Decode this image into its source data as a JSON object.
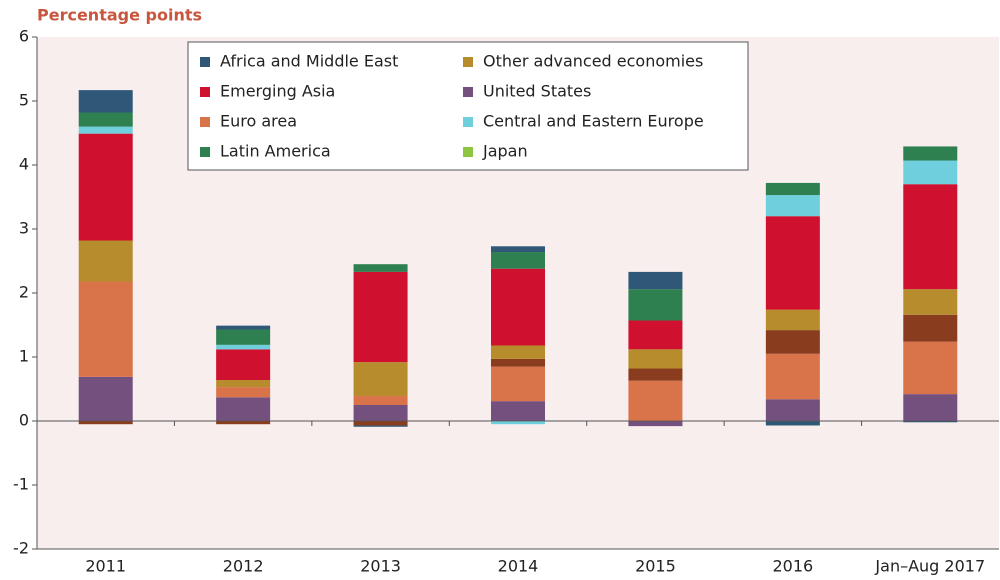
{
  "chart_data": {
    "type": "stacked_bar",
    "title": "Percentage points",
    "categories": [
      "2011",
      "2012",
      "2013",
      "2014",
      "2015",
      "2016",
      "Jan–Aug 2017"
    ],
    "series": [
      {
        "name": "Africa and Middle East",
        "color": "#2f5878",
        "values": [
          0.35,
          0.06,
          -0.02,
          0.09,
          0.27,
          -0.07,
          -0.02
        ]
      },
      {
        "name": "Emerging Asia",
        "color": "#d0102f",
        "values": [
          1.67,
          0.48,
          1.41,
          1.2,
          0.45,
          1.46,
          1.64
        ]
      },
      {
        "name": "Euro area",
        "color": "#d9744a",
        "values": [
          1.49,
          0.16,
          0.14,
          0.54,
          0.63,
          0.71,
          0.82
        ]
      },
      {
        "name": "Latin America",
        "color": "#2e8050",
        "values": [
          0.22,
          0.24,
          0.12,
          0.26,
          0.49,
          0.19,
          0.22
        ]
      },
      {
        "name": "Other advanced economies",
        "color": "#b68c2c",
        "values": [
          0.64,
          0.11,
          0.53,
          0.21,
          0.3,
          0.32,
          0.4
        ]
      },
      {
        "name": "United States",
        "color": "#74507e",
        "values": [
          0.69,
          0.37,
          0.25,
          0.31,
          -0.08,
          0.34,
          0.42
        ]
      },
      {
        "name": "Central and Eastern Europe",
        "color": "#6fcfdc",
        "values": [
          0.11,
          0.07,
          0,
          -0.05,
          0,
          0.33,
          0.37
        ]
      },
      {
        "name": "Japan",
        "color": "#8dc63f",
        "values": [
          0,
          0,
          0,
          0,
          0,
          0,
          0
        ]
      },
      {
        "color": "#8a3c1e",
        "values": [
          -0.05,
          -0.05,
          -0.07,
          0.12,
          0.19,
          0.37,
          0.42
        ]
      }
    ],
    "ylim": [
      -2,
      6
    ],
    "yticks": [
      -2,
      -1,
      0,
      1,
      2,
      3,
      4,
      5,
      6
    ]
  }
}
